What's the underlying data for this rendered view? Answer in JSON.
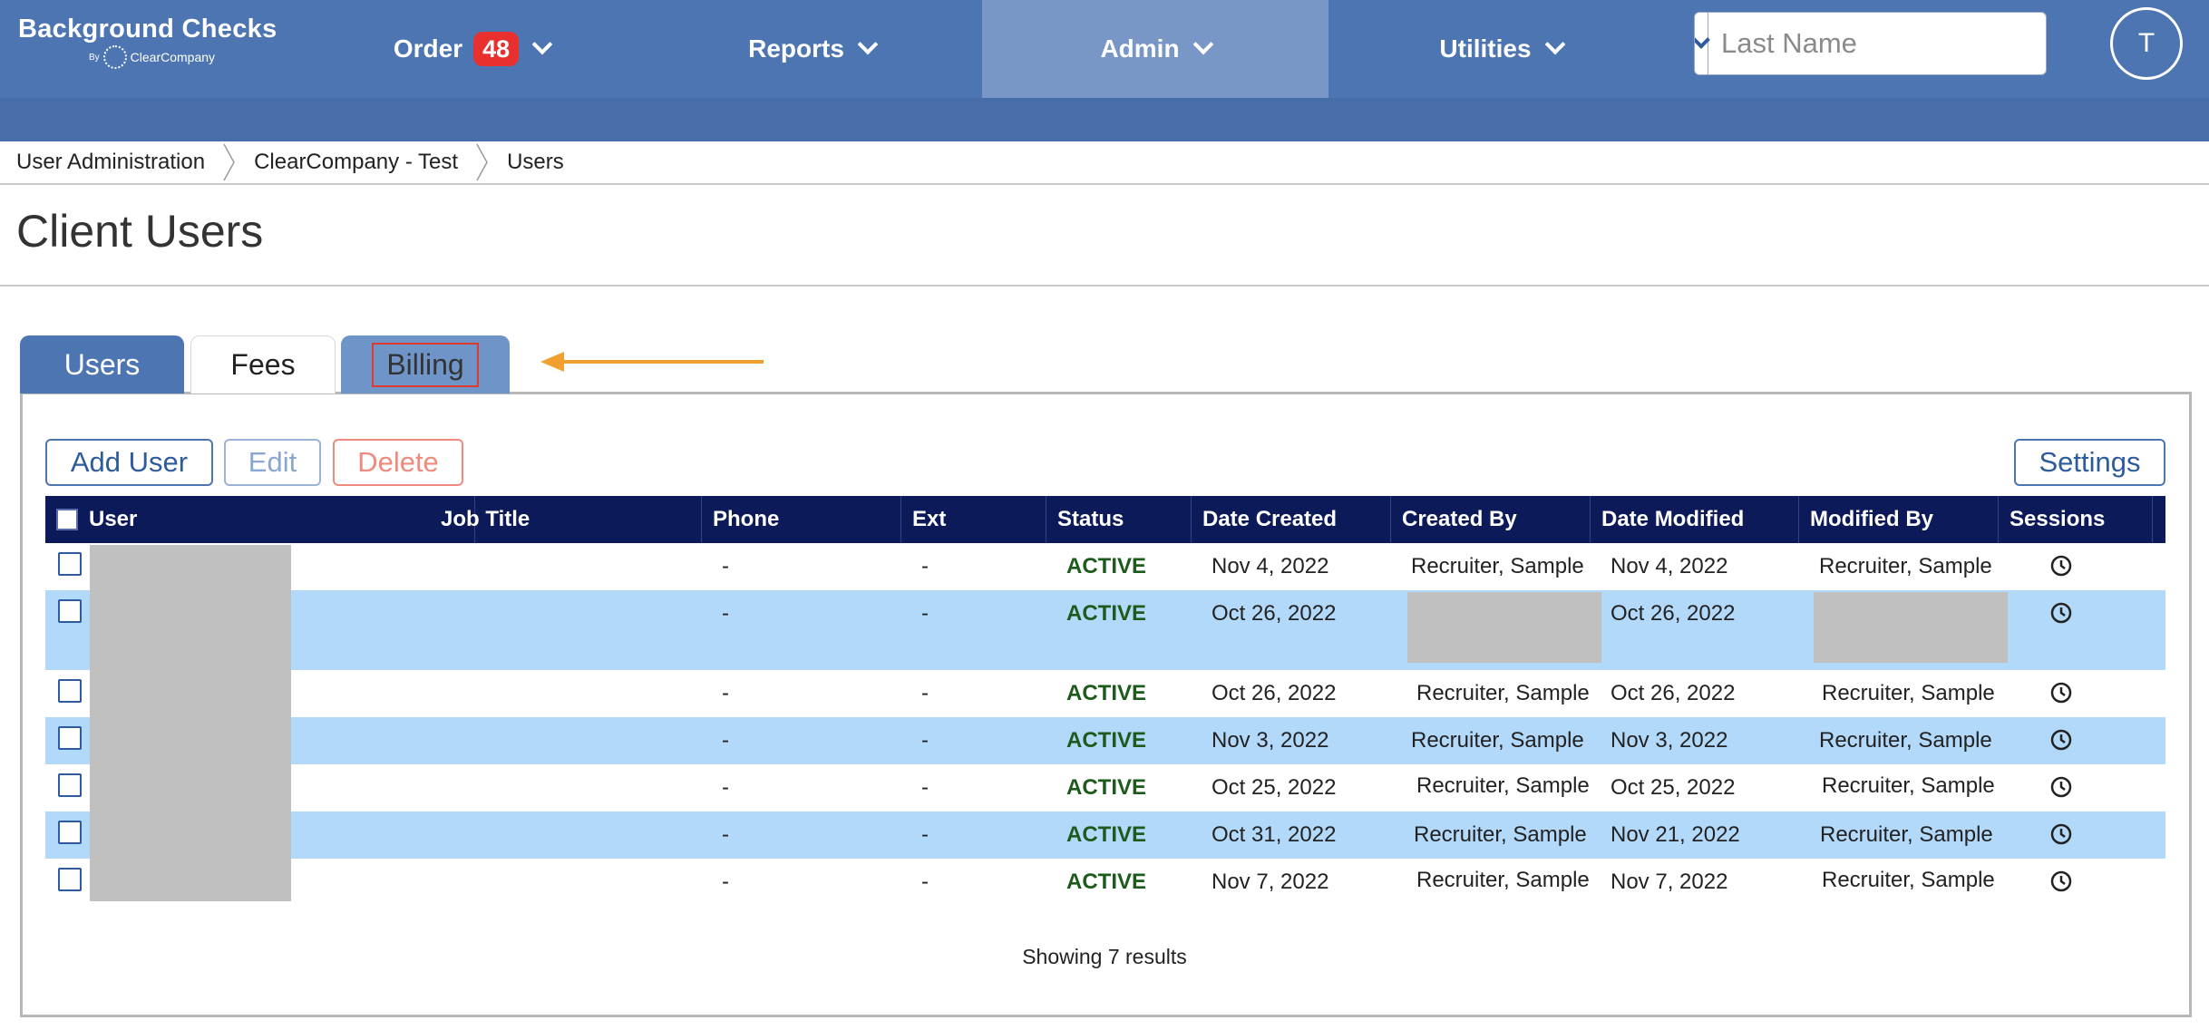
{
  "brand": {
    "title": "Background Checks",
    "by": "By",
    "company": "ClearCompany"
  },
  "nav": {
    "items": [
      {
        "label": "Order",
        "badge": "48"
      },
      {
        "label": "Reports"
      },
      {
        "label": "Admin"
      },
      {
        "label": "Utilities"
      }
    ],
    "active": "Admin"
  },
  "search": {
    "placeholder": "Last Name",
    "value": ""
  },
  "avatar": {
    "initial": "T"
  },
  "breadcrumb": [
    "User Administration",
    "ClearCompany - Test",
    "Users"
  ],
  "page": {
    "title": "Client Users"
  },
  "tabs": [
    {
      "label": "Users",
      "state": "active"
    },
    {
      "label": "Fees",
      "state": "inactive"
    },
    {
      "label": "Billing",
      "state": "highlighted"
    }
  ],
  "toolbar": {
    "add": "Add User",
    "edit": "Edit",
    "delete": "Delete",
    "settings": "Settings"
  },
  "table": {
    "columns": [
      "User",
      "Job Title",
      "Phone",
      "Ext",
      "Status",
      "Date Created",
      "Created By",
      "Date Modified",
      "Modified By",
      "Sessions"
    ],
    "rows": [
      {
        "phone": "-",
        "ext": "-",
        "status": "ACTIVE",
        "date_created": "Nov 4, 2022",
        "created_by": "Recruiter, Sample",
        "date_modified": "Nov 4, 2022",
        "modified_by": "Recruiter, Sample"
      },
      {
        "phone": "-",
        "ext": "-",
        "status": "ACTIVE",
        "date_created": "Oct 26, 2022",
        "created_by": "",
        "date_modified": "Oct 26, 2022",
        "modified_by": ""
      },
      {
        "phone": "-",
        "ext": "-",
        "status": "ACTIVE",
        "date_created": "Oct 26, 2022",
        "created_by": "Recruiter, Sample",
        "date_modified": "Oct 26, 2022",
        "modified_by": "Recruiter, Sample"
      },
      {
        "phone": "-",
        "ext": "-",
        "status": "ACTIVE",
        "date_created": "Nov 3, 2022",
        "created_by": "Recruiter, Sample",
        "date_modified": "Nov 3, 2022",
        "modified_by": "Recruiter, Sample"
      },
      {
        "phone": "-",
        "ext": "-",
        "status": "ACTIVE",
        "date_created": "Oct 25, 2022",
        "created_by": "Recruiter, Sample",
        "date_modified": "Oct 25, 2022",
        "modified_by": "Recruiter, Sample"
      },
      {
        "phone": "-",
        "ext": "-",
        "status": "ACTIVE",
        "date_created": "Oct 31, 2022",
        "created_by": "Recruiter, Sample",
        "date_modified": "Nov 21, 2022",
        "modified_by": "Recruiter, Sample"
      },
      {
        "phone": "-",
        "ext": "-",
        "status": "ACTIVE",
        "date_created": "Nov 7, 2022",
        "created_by": "Recruiter, Sample",
        "date_modified": "Nov 7, 2022",
        "modified_by": "Recruiter, Sample"
      }
    ],
    "footer": "Showing 7 results"
  },
  "colors": {
    "nav_bg": "#4d75b2",
    "nav_active": "#7896c6",
    "table_header": "#0d1a5a",
    "row_alt": "#b3d9fa",
    "status_active": "#1d5b1d",
    "badge": "#e8312f",
    "arrow": "#f0a030",
    "highlight_box": "#e03a2e"
  },
  "icons": {
    "search": "search-icon",
    "dropdown": "chevron-down-icon",
    "sessions": "clock-icon",
    "annotation": "arrow-left-icon"
  }
}
